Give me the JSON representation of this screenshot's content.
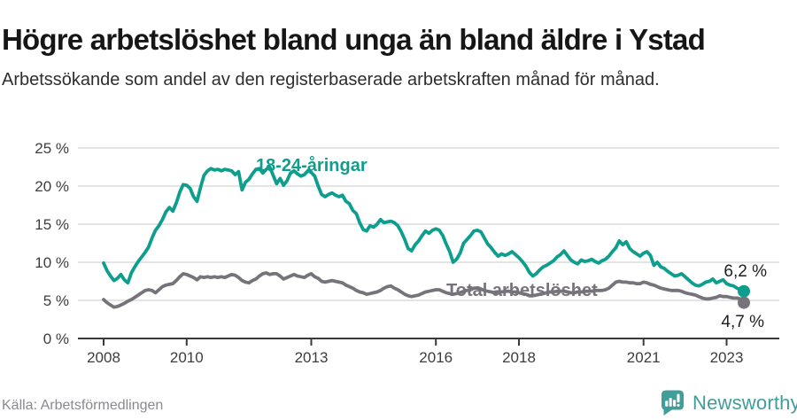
{
  "header": {
    "title": "Högre arbetslöshet bland unga än bland äldre i Ystad",
    "subtitle": "Arbetssökande som andel av den registerbaserade arbetskraften månad för månad."
  },
  "footer": {
    "source": "Källa: Arbetsförmedlingen",
    "brand": "Newsworthy"
  },
  "colors": {
    "young_line": "#0d9e8d",
    "total_line": "#76747a",
    "brand_teal": "#3f9e9a",
    "grid": "#dcdcdc",
    "axis": "#3a3a3a"
  },
  "chart_data": {
    "type": "line",
    "title": "Högre arbetslöshet bland unga än bland äldre i Ystad",
    "subtitle": "Arbetssökande som andel av den registerbaserade arbetskraften månad för månad.",
    "unit": "%",
    "x_range": [
      2008,
      2023.42
    ],
    "ylim": [
      0,
      25
    ],
    "grid": true,
    "legend_position": "inline-labels",
    "y_ticks": [
      {
        "value": 0,
        "label": "0 %"
      },
      {
        "value": 5,
        "label": "5 %"
      },
      {
        "value": 10,
        "label": "10 %"
      },
      {
        "value": 15,
        "label": "15 %"
      },
      {
        "value": 20,
        "label": "20 %"
      },
      {
        "value": 25,
        "label": "25 %"
      }
    ],
    "x_ticks": [
      {
        "year": 2008,
        "label": "2008"
      },
      {
        "year": 2010,
        "label": "2010"
      },
      {
        "year": 2013,
        "label": "2013"
      },
      {
        "year": 2016,
        "label": "2016"
      },
      {
        "year": 2018,
        "label": "2018"
      },
      {
        "year": 2021,
        "label": "2021"
      },
      {
        "year": 2023,
        "label": "2023"
      }
    ],
    "series": [
      {
        "id": "young",
        "name": "18-24-åringar",
        "color": "#0d9e8d",
        "end_label": "6,2 %",
        "end_value": 6.2,
        "start_year": 2008,
        "points_per_year": 12,
        "values": [
          9.9,
          8.9,
          8.2,
          7.6,
          7.9,
          8.4,
          7.7,
          7.3,
          8.6,
          9.4,
          10.1,
          10.7,
          11.3,
          12.0,
          13.2,
          14.2,
          14.8,
          15.6,
          16.6,
          17.2,
          16.7,
          17.8,
          19.2,
          20.2,
          20.1,
          19.7,
          18.6,
          18.0,
          19.8,
          21.4,
          22.0,
          22.3,
          22.1,
          22.2,
          22.0,
          22.2,
          22.1,
          22.0,
          21.5,
          21.9,
          19.5,
          20.5,
          20.9,
          21.6,
          22.2,
          22.3,
          21.7,
          22.2,
          22.5,
          21.4,
          20.3,
          21.0,
          20.1,
          20.7,
          21.7,
          22.0,
          21.6,
          21.3,
          21.5,
          22.0,
          21.8,
          21.3,
          20.0,
          18.9,
          18.6,
          18.9,
          19.1,
          18.8,
          18.6,
          18.8,
          18.0,
          17.7,
          16.8,
          16.4,
          15.2,
          14.3,
          14.1,
          14.8,
          14.6,
          15.0,
          15.6,
          15.2,
          15.3,
          15.4,
          15.2,
          14.8,
          14.0,
          13.0,
          11.8,
          11.5,
          12.3,
          12.8,
          13.5,
          14.1,
          13.8,
          14.2,
          14.4,
          14.2,
          13.5,
          12.4,
          11.4,
          10.0,
          10.4,
          11.2,
          12.5,
          13.0,
          13.5,
          14.1,
          14.2,
          14.0,
          13.2,
          12.4,
          11.9,
          11.3,
          10.8,
          11.1,
          10.9,
          11.1,
          11.4,
          11.0,
          10.6,
          10.1,
          9.5,
          8.7,
          8.2,
          8.5,
          9.0,
          9.4,
          9.6,
          9.9,
          10.2,
          10.7,
          11.0,
          11.5,
          10.9,
          10.3,
          10.0,
          9.8,
          10.3,
          10.1,
          10.2,
          10.4,
          10.1,
          9.9,
          10.2,
          10.4,
          10.8,
          11.4,
          11.9,
          12.8,
          12.3,
          12.7,
          11.8,
          11.4,
          11.1,
          10.8,
          11.2,
          11.4,
          10.9,
          9.6,
          10.0,
          9.4,
          9.2,
          8.8,
          8.5,
          8.2,
          8.3,
          8.5,
          8.1,
          7.7,
          7.3,
          7.0,
          6.9,
          7.1,
          7.4,
          7.5,
          7.8,
          7.3,
          7.5,
          7.7,
          7.2,
          7.0,
          6.9,
          6.6,
          6.4,
          6.2
        ]
      },
      {
        "id": "total",
        "name": "Total arbetslöshet",
        "color": "#76747a",
        "end_label": "4,7 %",
        "end_value": 4.7,
        "start_year": 2008,
        "points_per_year": 12,
        "values": [
          5.1,
          4.7,
          4.4,
          4.1,
          4.2,
          4.4,
          4.6,
          4.9,
          5.1,
          5.4,
          5.7,
          6.0,
          6.3,
          6.4,
          6.3,
          6.0,
          6.4,
          6.8,
          7.0,
          7.1,
          7.2,
          7.6,
          8.1,
          8.5,
          8.4,
          8.2,
          8.0,
          7.7,
          8.1,
          8.0,
          8.1,
          8.0,
          8.1,
          8.0,
          8.1,
          8.0,
          8.2,
          8.4,
          8.3,
          8.0,
          7.6,
          7.4,
          7.3,
          7.6,
          7.8,
          8.2,
          8.5,
          8.6,
          8.4,
          8.5,
          8.5,
          8.2,
          7.8,
          8.0,
          8.2,
          8.4,
          8.2,
          8.1,
          8.0,
          8.3,
          8.5,
          8.1,
          7.9,
          7.5,
          7.4,
          7.5,
          7.6,
          7.5,
          7.4,
          7.3,
          7.0,
          6.8,
          6.6,
          6.3,
          6.1,
          6.0,
          5.8,
          5.9,
          6.0,
          6.1,
          6.3,
          6.6,
          6.8,
          6.9,
          6.6,
          6.4,
          6.1,
          5.8,
          5.6,
          5.5,
          5.6,
          5.7,
          5.9,
          6.1,
          6.2,
          6.3,
          6.4,
          6.4,
          6.2,
          6.0,
          5.9,
          5.8,
          5.9,
          6.0,
          6.2,
          6.3,
          6.4,
          6.6,
          6.6,
          6.5,
          6.3,
          6.2,
          6.1,
          6.0,
          6.0,
          6.1,
          6.2,
          6.2,
          6.1,
          6.1,
          6.0,
          5.9,
          5.8,
          5.6,
          5.6,
          5.7,
          5.8,
          5.9,
          6.0,
          6.1,
          6.1,
          6.2,
          6.2,
          6.2,
          6.1,
          6.0,
          6.0,
          6.1,
          6.1,
          6.2,
          6.2,
          6.2,
          6.3,
          6.3,
          6.3,
          6.4,
          6.6,
          7.0,
          7.4,
          7.5,
          7.4,
          7.4,
          7.3,
          7.3,
          7.2,
          7.2,
          7.4,
          7.3,
          7.1,
          7.0,
          6.8,
          6.6,
          6.5,
          6.4,
          6.3,
          6.3,
          6.3,
          6.2,
          6.0,
          5.9,
          5.8,
          5.7,
          5.5,
          5.3,
          5.2,
          5.2,
          5.3,
          5.4,
          5.6,
          5.5,
          5.5,
          5.4,
          5.3,
          5.3,
          5.2,
          4.7
        ]
      }
    ]
  }
}
